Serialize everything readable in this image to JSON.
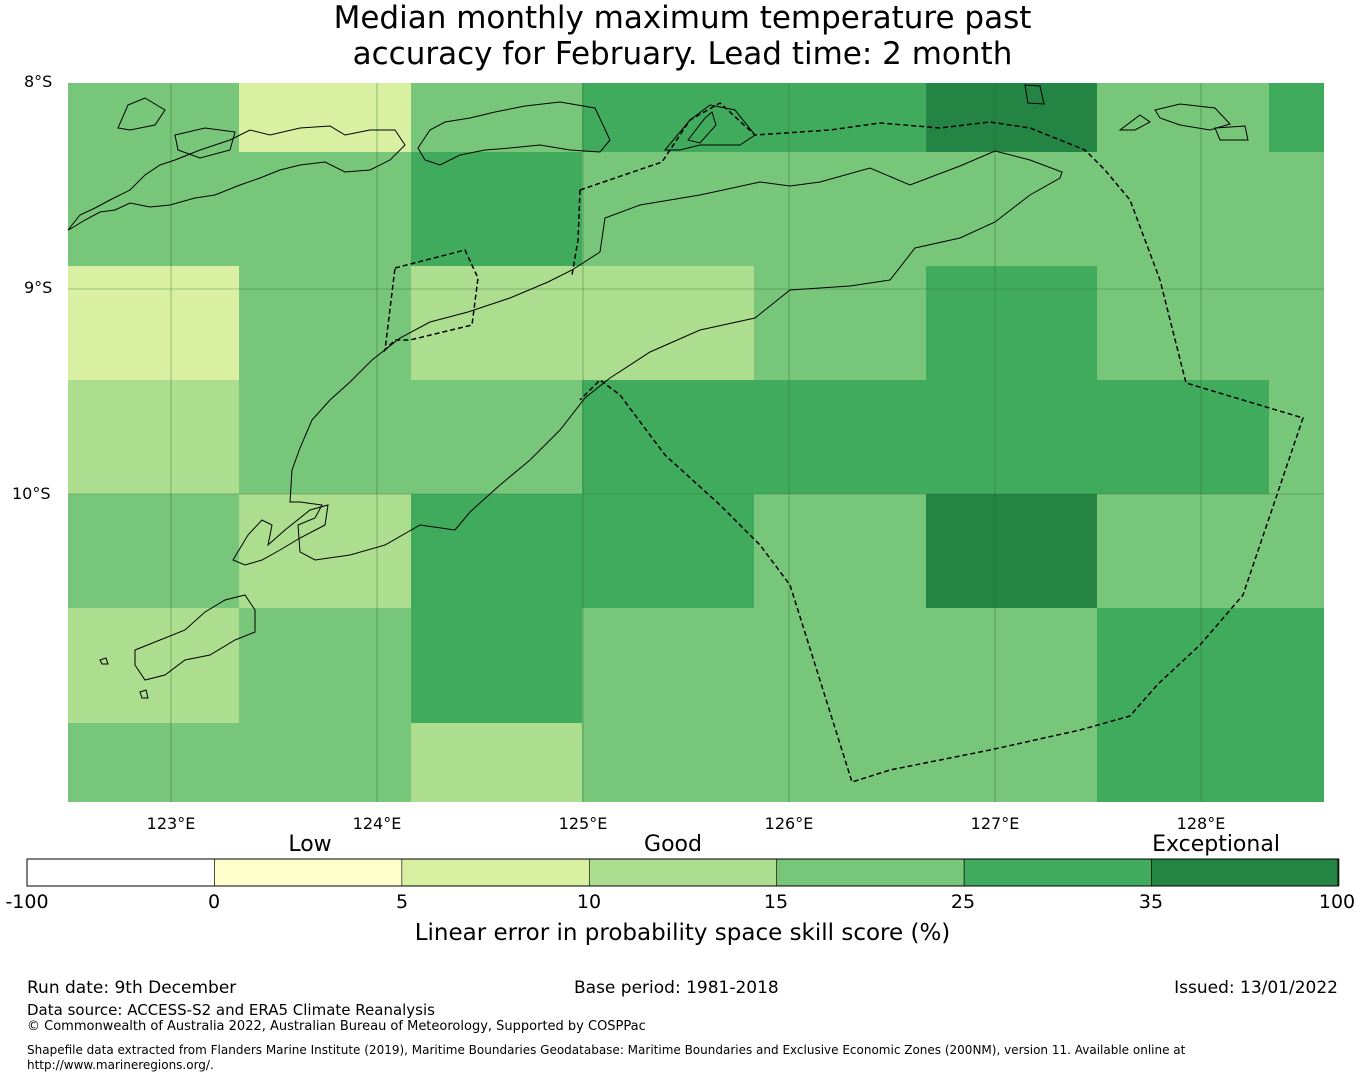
{
  "title": {
    "line1": "Median monthly maximum temperature past",
    "line2": "accuracy for February. Lead time: 2 month"
  },
  "map": {
    "lat_labels": [
      "8°S",
      "9°S",
      "10°S"
    ],
    "lon_labels": [
      "123°E",
      "124°E",
      "125°E",
      "126°E",
      "127°E",
      "128°E"
    ],
    "grid_colors_legend": {
      "0-5": "#ffffcc",
      "5-10": "#d9f0a3",
      "10-15": "#addd8e",
      "15-25": "#78c679",
      "25-35": "#41ab5d",
      "35-100": "#238443"
    },
    "grid_rows": [
      [
        "15-25",
        "5-10",
        "15-25",
        "25-35",
        "25-35",
        "35-100",
        "15-25",
        "25-35"
      ],
      [
        "15-25",
        "15-25",
        "25-35",
        "15-25",
        "15-25",
        "15-25",
        "15-25",
        "15-25"
      ],
      [
        "5-10",
        "15-25",
        "10-15",
        "10-15",
        "15-25",
        "25-35",
        "15-25",
        "15-25"
      ],
      [
        "10-15",
        "15-25",
        "15-25",
        "25-35",
        "25-35",
        "25-35",
        "25-35",
        "15-25"
      ],
      [
        "15-25",
        "10-15",
        "25-35",
        "25-35",
        "15-25",
        "35-100",
        "15-25",
        "15-25"
      ],
      [
        "10-15",
        "15-25",
        "25-35",
        "15-25",
        "15-25",
        "15-25",
        "25-35",
        "25-35"
      ],
      [
        "15-25",
        "15-25",
        "10-15",
        "15-25",
        "15-25",
        "15-25",
        "25-35",
        "25-35"
      ]
    ]
  },
  "legend": {
    "categories": [
      "Low",
      "Good",
      "Exceptional"
    ],
    "ticks": [
      "-100",
      "0",
      "5",
      "10",
      "15",
      "25",
      "35",
      "100"
    ],
    "colors": [
      "#ffffff",
      "#ffffcc",
      "#d9f0a3",
      "#addd8e",
      "#78c679",
      "#41ab5d",
      "#238443"
    ],
    "title": "Linear error in probability space skill score (%)"
  },
  "footer": {
    "run_date": "Run date: 9th December",
    "base_period": "Base period: 1981-2018",
    "issued": "Issued: 13/01/2022",
    "data_source": "Data source: ACCESS-S2 and ERA5 Climate Reanalysis",
    "copyright": "© Commonwealth of Australia 2022, Australian Bureau of Meteorology, Supported by COSPPac",
    "shapefile": "Shapefile data extracted from Flanders Marine Institute (2019), Maritime Boundaries Geodatabase: Maritime Boundaries and Exclusive Economic Zones (200NM), version 11. Available online at http://www.marineregions.org/."
  }
}
